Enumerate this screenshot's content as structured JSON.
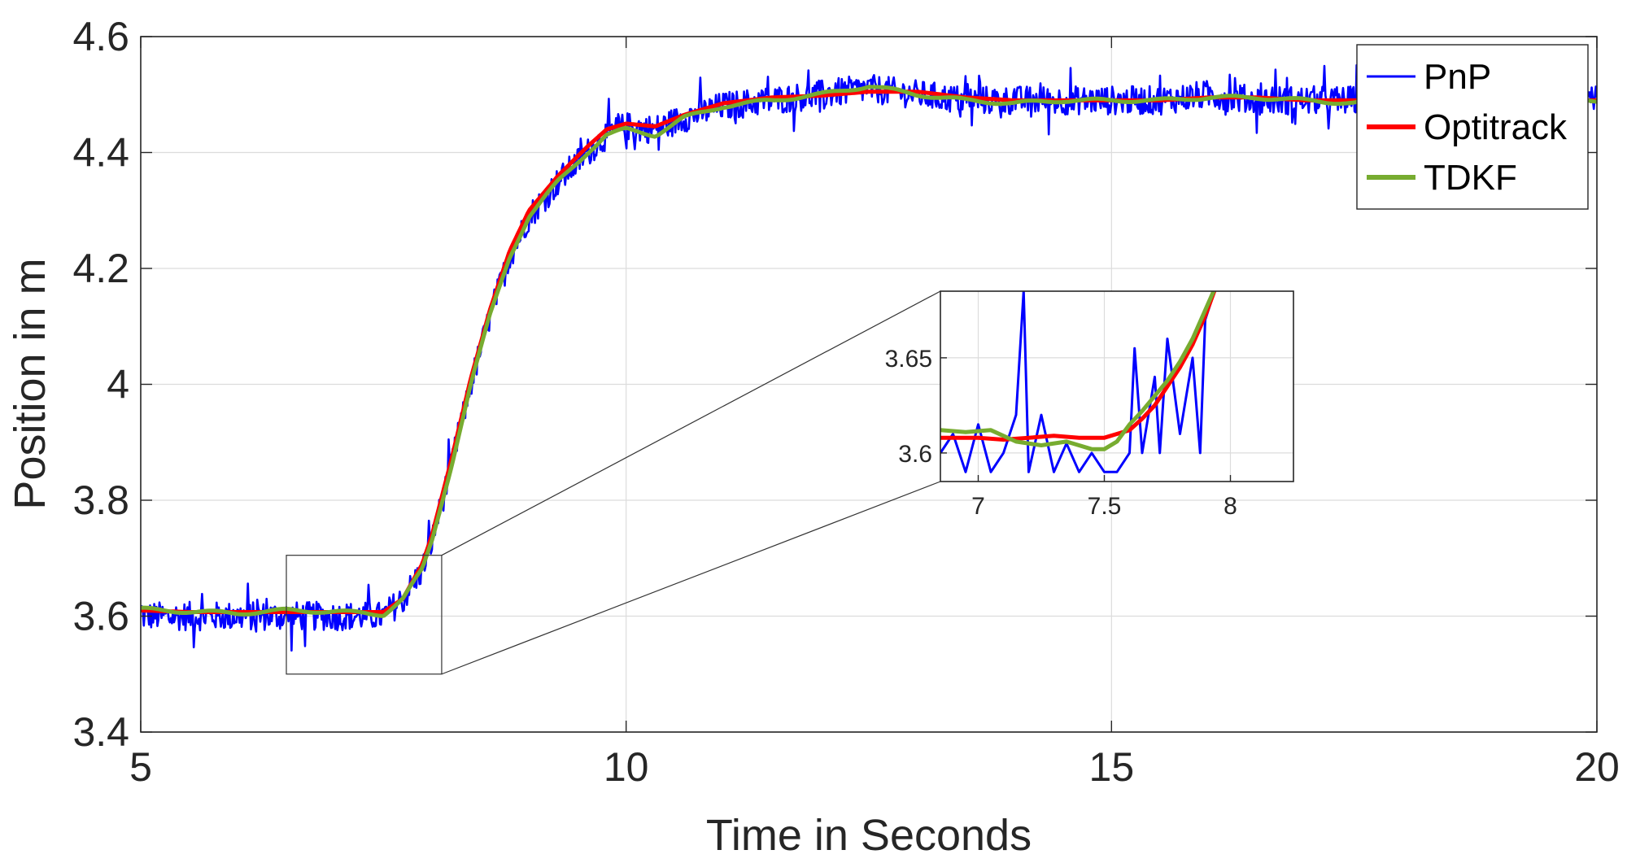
{
  "chart_data": {
    "type": "line",
    "title": "",
    "xlabel": "Time in Seconds",
    "ylabel": "Position in m",
    "xlim": [
      5,
      20
    ],
    "ylim": [
      3.4,
      4.6
    ],
    "xticks": [
      "5",
      "10",
      "15",
      "20"
    ],
    "yticks": [
      "3.4",
      "3.6",
      "3.8",
      "4",
      "4.2",
      "4.4",
      "4.6"
    ],
    "grid": true,
    "legend": "top-right",
    "series": [
      {
        "name": "PnP",
        "color": "#0000ff",
        "x": [
          5.0,
          5.5,
          6.0,
          6.5,
          7.0,
          7.5,
          7.7,
          7.9,
          8.0,
          8.2,
          8.4,
          8.6,
          8.8,
          9.0,
          9.3,
          9.6,
          9.8,
          10.0,
          10.3,
          10.6,
          11.0,
          11.5,
          12.0,
          12.5,
          13.0,
          13.5,
          14.0,
          14.5,
          15.0,
          15.5,
          16.0,
          16.5,
          17.0,
          17.5,
          18.0,
          18.5,
          19.0,
          19.5,
          20.0
        ],
        "y": [
          3.6,
          3.6,
          3.6,
          3.6,
          3.6,
          3.6,
          3.63,
          3.68,
          3.73,
          3.86,
          4.0,
          4.12,
          4.22,
          4.29,
          4.35,
          4.4,
          4.43,
          4.445,
          4.44,
          4.46,
          4.48,
          4.49,
          4.5,
          4.51,
          4.5,
          4.49,
          4.49,
          4.49,
          4.49,
          4.49,
          4.5,
          4.49,
          4.49,
          4.49,
          4.49,
          4.49,
          4.49,
          4.49,
          4.49
        ],
        "noise_amplitude": 0.025
      },
      {
        "name": "Optitrack",
        "color": "#ff0000",
        "x": [
          5.0,
          5.5,
          6.0,
          6.5,
          7.0,
          7.5,
          7.7,
          7.9,
          8.0,
          8.2,
          8.4,
          8.6,
          8.8,
          9.0,
          9.3,
          9.6,
          9.8,
          10.0,
          10.3,
          10.6,
          11.0,
          11.5,
          12.0,
          12.5,
          13.0,
          13.5,
          14.0,
          14.5,
          15.0,
          15.5,
          16.0,
          16.5,
          17.0,
          17.5,
          18.0,
          18.5,
          19.0,
          19.5,
          20.0
        ],
        "y": [
          3.61,
          3.607,
          3.607,
          3.607,
          3.607,
          3.607,
          3.63,
          3.69,
          3.74,
          3.87,
          4.01,
          4.13,
          4.23,
          4.3,
          4.36,
          4.41,
          4.44,
          4.45,
          4.445,
          4.465,
          4.485,
          4.495,
          4.498,
          4.505,
          4.505,
          4.495,
          4.49,
          4.49,
          4.49,
          4.49,
          4.495,
          4.495,
          4.49,
          4.49,
          4.49,
          4.49,
          4.49,
          4.49,
          4.49
        ]
      },
      {
        "name": "TDKF",
        "color": "#77ac30",
        "x": [
          5.0,
          5.5,
          6.0,
          6.5,
          7.0,
          7.5,
          7.7,
          7.9,
          8.0,
          8.2,
          8.4,
          8.6,
          8.8,
          9.0,
          9.3,
          9.6,
          9.8,
          10.0,
          10.3,
          10.6,
          11.0,
          11.5,
          12.0,
          12.5,
          13.0,
          13.5,
          14.0,
          14.5,
          15.0,
          15.5,
          16.0,
          16.5,
          17.0,
          17.5,
          18.0,
          18.5,
          19.0,
          19.5,
          20.0
        ],
        "y": [
          3.612,
          3.608,
          3.605,
          3.61,
          3.608,
          3.603,
          3.63,
          3.68,
          3.73,
          3.86,
          4.0,
          4.12,
          4.22,
          4.29,
          4.35,
          4.4,
          4.43,
          4.44,
          4.43,
          4.46,
          4.48,
          4.49,
          4.5,
          4.515,
          4.5,
          4.49,
          4.485,
          4.49,
          4.49,
          4.49,
          4.495,
          4.495,
          4.49,
          4.485,
          4.49,
          4.49,
          4.49,
          4.49,
          4.49
        ]
      }
    ],
    "inset": {
      "xlim": [
        6.85,
        8.25
      ],
      "ylim": [
        3.585,
        3.685
      ],
      "xticks": [
        "7",
        "7.5",
        "8"
      ],
      "yticks": [
        "3.6",
        "3.65"
      ],
      "grid": true,
      "zoom_region": {
        "x": [
          6.5,
          8.1
        ],
        "y": [
          3.5,
          3.705
        ]
      },
      "series": [
        {
          "name": "PnP",
          "x": [
            6.85,
            6.9,
            6.95,
            7.0,
            7.05,
            7.1,
            7.15,
            7.18,
            7.2,
            7.25,
            7.3,
            7.35,
            7.4,
            7.45,
            7.5,
            7.55,
            7.6,
            7.62,
            7.65,
            7.7,
            7.72,
            7.75,
            7.8,
            7.85,
            7.88,
            7.9,
            7.95
          ],
          "y": [
            3.6,
            3.61,
            3.59,
            3.615,
            3.59,
            3.6,
            3.62,
            3.685,
            3.59,
            3.62,
            3.59,
            3.605,
            3.59,
            3.6,
            3.59,
            3.59,
            3.6,
            3.655,
            3.6,
            3.64,
            3.6,
            3.66,
            3.61,
            3.65,
            3.6,
            3.67,
            3.69
          ]
        },
        {
          "name": "Optitrack",
          "x": [
            6.85,
            7.0,
            7.1,
            7.2,
            7.3,
            7.4,
            7.5,
            7.55,
            7.6,
            7.65,
            7.7,
            7.75,
            7.8,
            7.85,
            7.9,
            7.95
          ],
          "y": [
            3.608,
            3.608,
            3.607,
            3.608,
            3.609,
            3.608,
            3.608,
            3.61,
            3.612,
            3.618,
            3.625,
            3.635,
            3.645,
            3.657,
            3.672,
            3.69
          ]
        },
        {
          "name": "TDKF",
          "x": [
            6.85,
            6.95,
            7.05,
            7.15,
            7.25,
            7.35,
            7.45,
            7.5,
            7.55,
            7.6,
            7.65,
            7.7,
            7.75,
            7.8,
            7.85,
            7.9,
            7.95
          ],
          "y": [
            3.612,
            3.611,
            3.612,
            3.606,
            3.604,
            3.606,
            3.602,
            3.602,
            3.606,
            3.615,
            3.622,
            3.63,
            3.638,
            3.648,
            3.66,
            3.675,
            3.69
          ]
        }
      ]
    }
  }
}
